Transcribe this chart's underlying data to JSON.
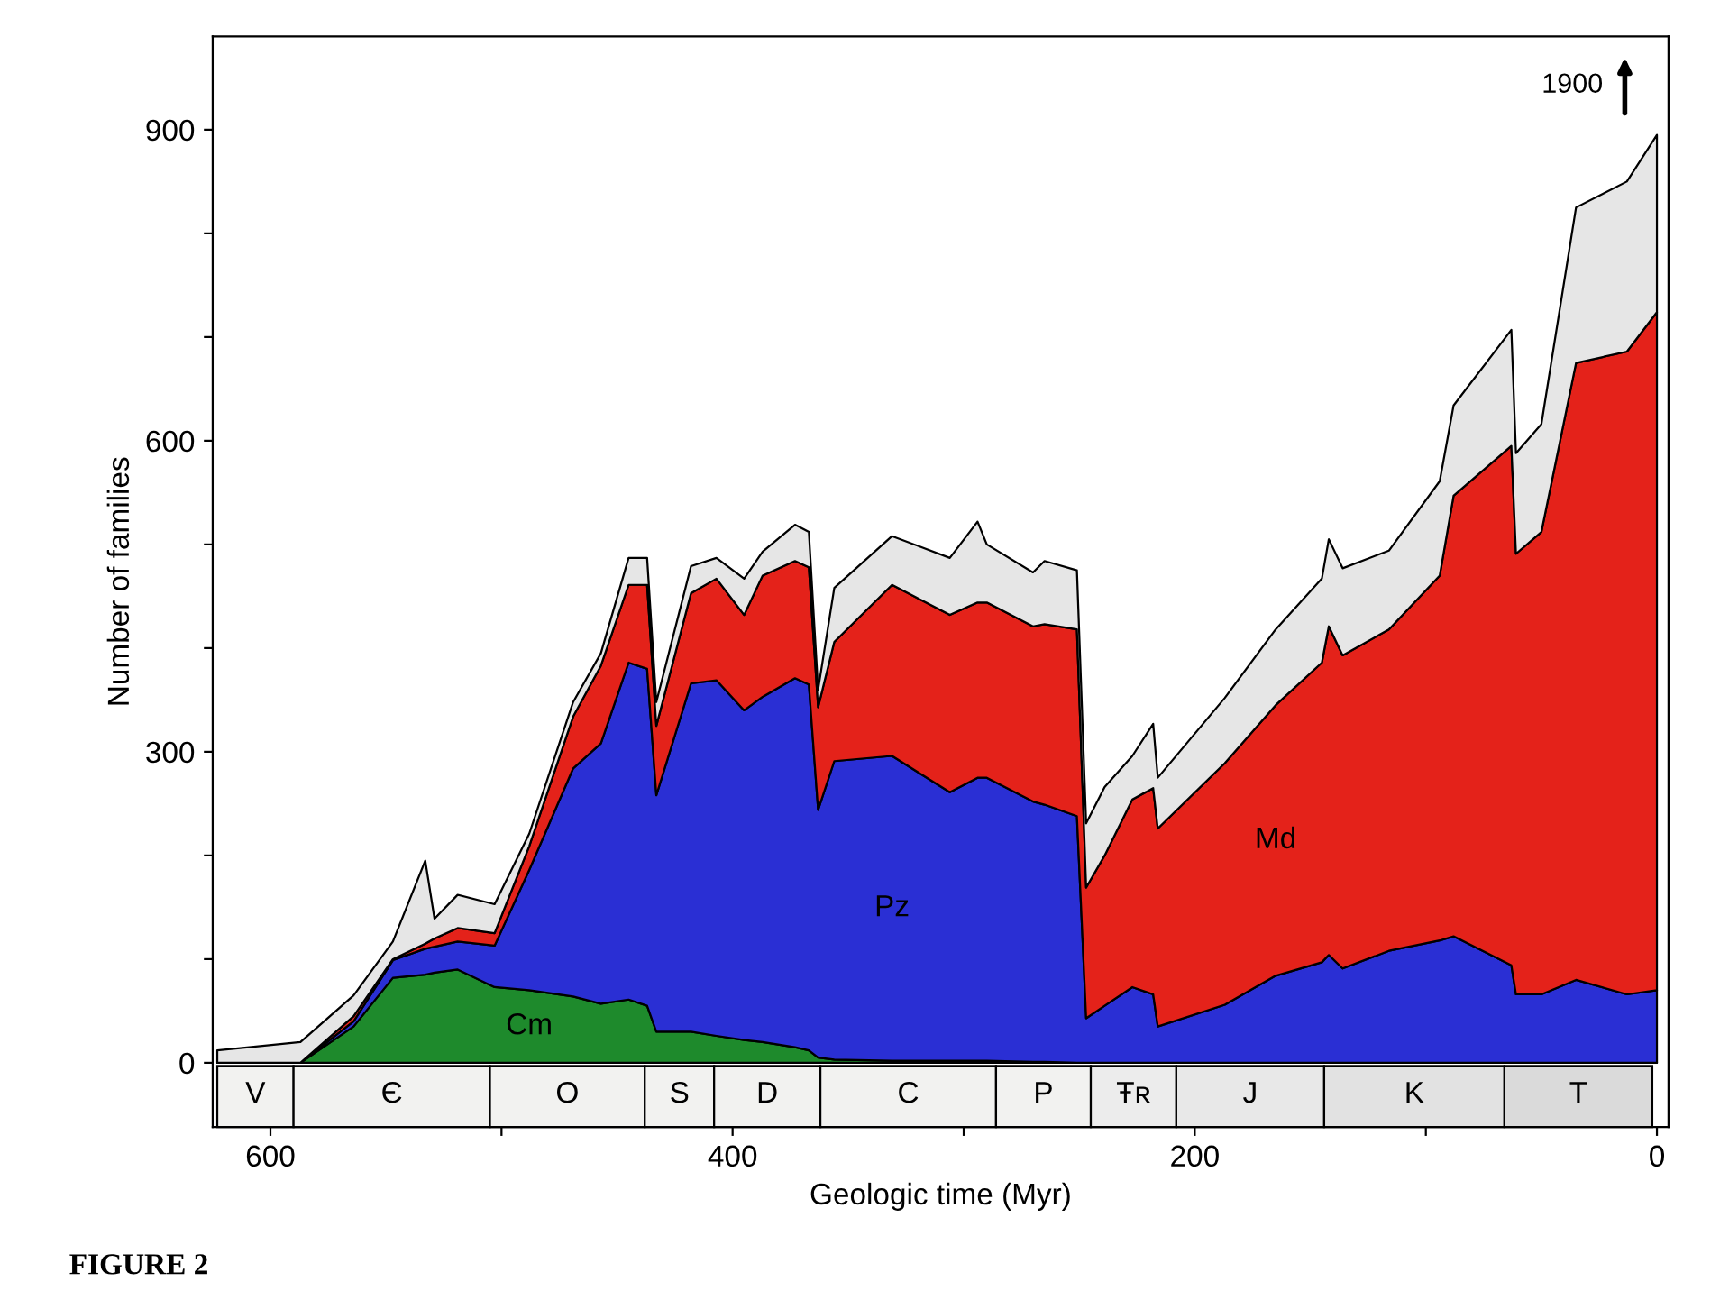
{
  "chart_data": {
    "type": "area",
    "stacked": true,
    "xlabel": "Geologic time (Myr)",
    "ylabel": "Number of families",
    "x": [
      623,
      587,
      564,
      547,
      533,
      529,
      519,
      503,
      488,
      469,
      457,
      445,
      437,
      433,
      418,
      407,
      395,
      387,
      373,
      367,
      363,
      356,
      331,
      306,
      294,
      290,
      270,
      265,
      251,
      247,
      239,
      227,
      218,
      216,
      187,
      165,
      145,
      142,
      136,
      116,
      94,
      88,
      63,
      61,
      50,
      35,
      13,
      0
    ],
    "series": [
      {
        "name": "Cm",
        "color": "#1e8a2c",
        "values": [
          0,
          0,
          35,
          82,
          85,
          87,
          90,
          73,
          70,
          64,
          57,
          61,
          55,
          30,
          30,
          26,
          22,
          20,
          15,
          12,
          5,
          3,
          2,
          2,
          2,
          2,
          1,
          1,
          0,
          0,
          0,
          0,
          0,
          0,
          0,
          0,
          0,
          0,
          0,
          0,
          0,
          0,
          0,
          0,
          0,
          0,
          0,
          0
        ]
      },
      {
        "name": "Pz",
        "color": "#2a2fd4",
        "values": [
          0,
          0,
          5,
          17,
          25,
          25,
          27,
          40,
          116,
          220,
          251,
          325,
          325,
          228,
          336,
          343,
          318,
          333,
          356,
          353,
          239,
          288,
          294,
          259,
          273,
          273,
          251,
          248,
          238,
          43,
          55,
          73,
          66,
          35,
          56,
          84,
          97,
          104,
          91,
          108,
          118,
          122,
          94,
          66,
          66,
          80,
          66,
          70
        ]
      },
      {
        "name": "Md",
        "color": "#e4221a",
        "values": [
          0,
          0,
          5,
          1,
          5,
          8,
          13,
          12,
          23,
          50,
          75,
          75,
          81,
          67,
          87,
          98,
          92,
          117,
          113,
          113,
          99,
          115,
          165,
          171,
          169,
          169,
          169,
          174,
          180,
          126,
          145,
          181,
          199,
          191,
          233,
          261,
          289,
          317,
          302,
          310,
          352,
          425,
          501,
          425,
          446,
          595,
          620,
          654
        ]
      },
      {
        "color": "#e6e6e6",
        "values": [
          12,
          20,
          20,
          17,
          80,
          19,
          32,
          28,
          12,
          14,
          12,
          26,
          26,
          23,
          26,
          20,
          35,
          23,
          35,
          34,
          17,
          52,
          47,
          55,
          78,
          56,
          52,
          61,
          57,
          62,
          66,
          42,
          62,
          49,
          63,
          73,
          81,
          84,
          84,
          76,
          91,
          87,
          112,
          97,
          104,
          150,
          164,
          171
        ]
      }
    ],
    "xlim": [
      625,
      -5
    ],
    "ylim": [
      -62,
      990
    ],
    "xticks": [
      600,
      {
        "value": 500,
        "label": null
      },
      400,
      {
        "value": 300,
        "label": null
      },
      200,
      {
        "value": 100,
        "label": null
      },
      0
    ],
    "yticks": [
      0,
      {
        "value": 100,
        "label": null
      },
      {
        "value": 200,
        "label": null
      },
      300,
      {
        "value": 400,
        "label": null
      },
      {
        "value": 500,
        "label": null
      },
      600,
      {
        "value": 700,
        "label": null
      },
      {
        "value": 800,
        "label": null
      },
      900
    ],
    "bands": [
      {
        "axis": "x",
        "from": 623,
        "to": 590,
        "label": "V",
        "color": "#f2f2f0"
      },
      {
        "axis": "x",
        "from": 590,
        "to": 505,
        "label": "Є",
        "color": "#f2f2f0"
      },
      {
        "axis": "x",
        "from": 505,
        "to": 438,
        "label": "O",
        "color": "#f2f2f0"
      },
      {
        "axis": "x",
        "from": 438,
        "to": 408,
        "label": "S",
        "color": "#f2f2f0"
      },
      {
        "axis": "x",
        "from": 408,
        "to": 362,
        "label": "D",
        "color": "#f2f2f0"
      },
      {
        "axis": "x",
        "from": 362,
        "to": 286,
        "label": "C",
        "color": "#f2f2f0"
      },
      {
        "axis": "x",
        "from": 286,
        "to": 245,
        "label": "P",
        "color": "#f2f2f0"
      },
      {
        "axis": "x",
        "from": 245,
        "to": 208,
        "label": "Ŧʀ",
        "color": "#ececec"
      },
      {
        "axis": "x",
        "from": 208,
        "to": 144,
        "label": "J",
        "color": "#e8e8e8"
      },
      {
        "axis": "x",
        "from": 144,
        "to": 66,
        "label": "K",
        "color": "#e2e2e2"
      },
      {
        "axis": "x",
        "from": 66,
        "to": 2,
        "label": "T",
        "color": "#dadada"
      }
    ],
    "annotations": [
      "1900",
      "FIGURE 2"
    ],
    "grid": false,
    "legend": false
  }
}
